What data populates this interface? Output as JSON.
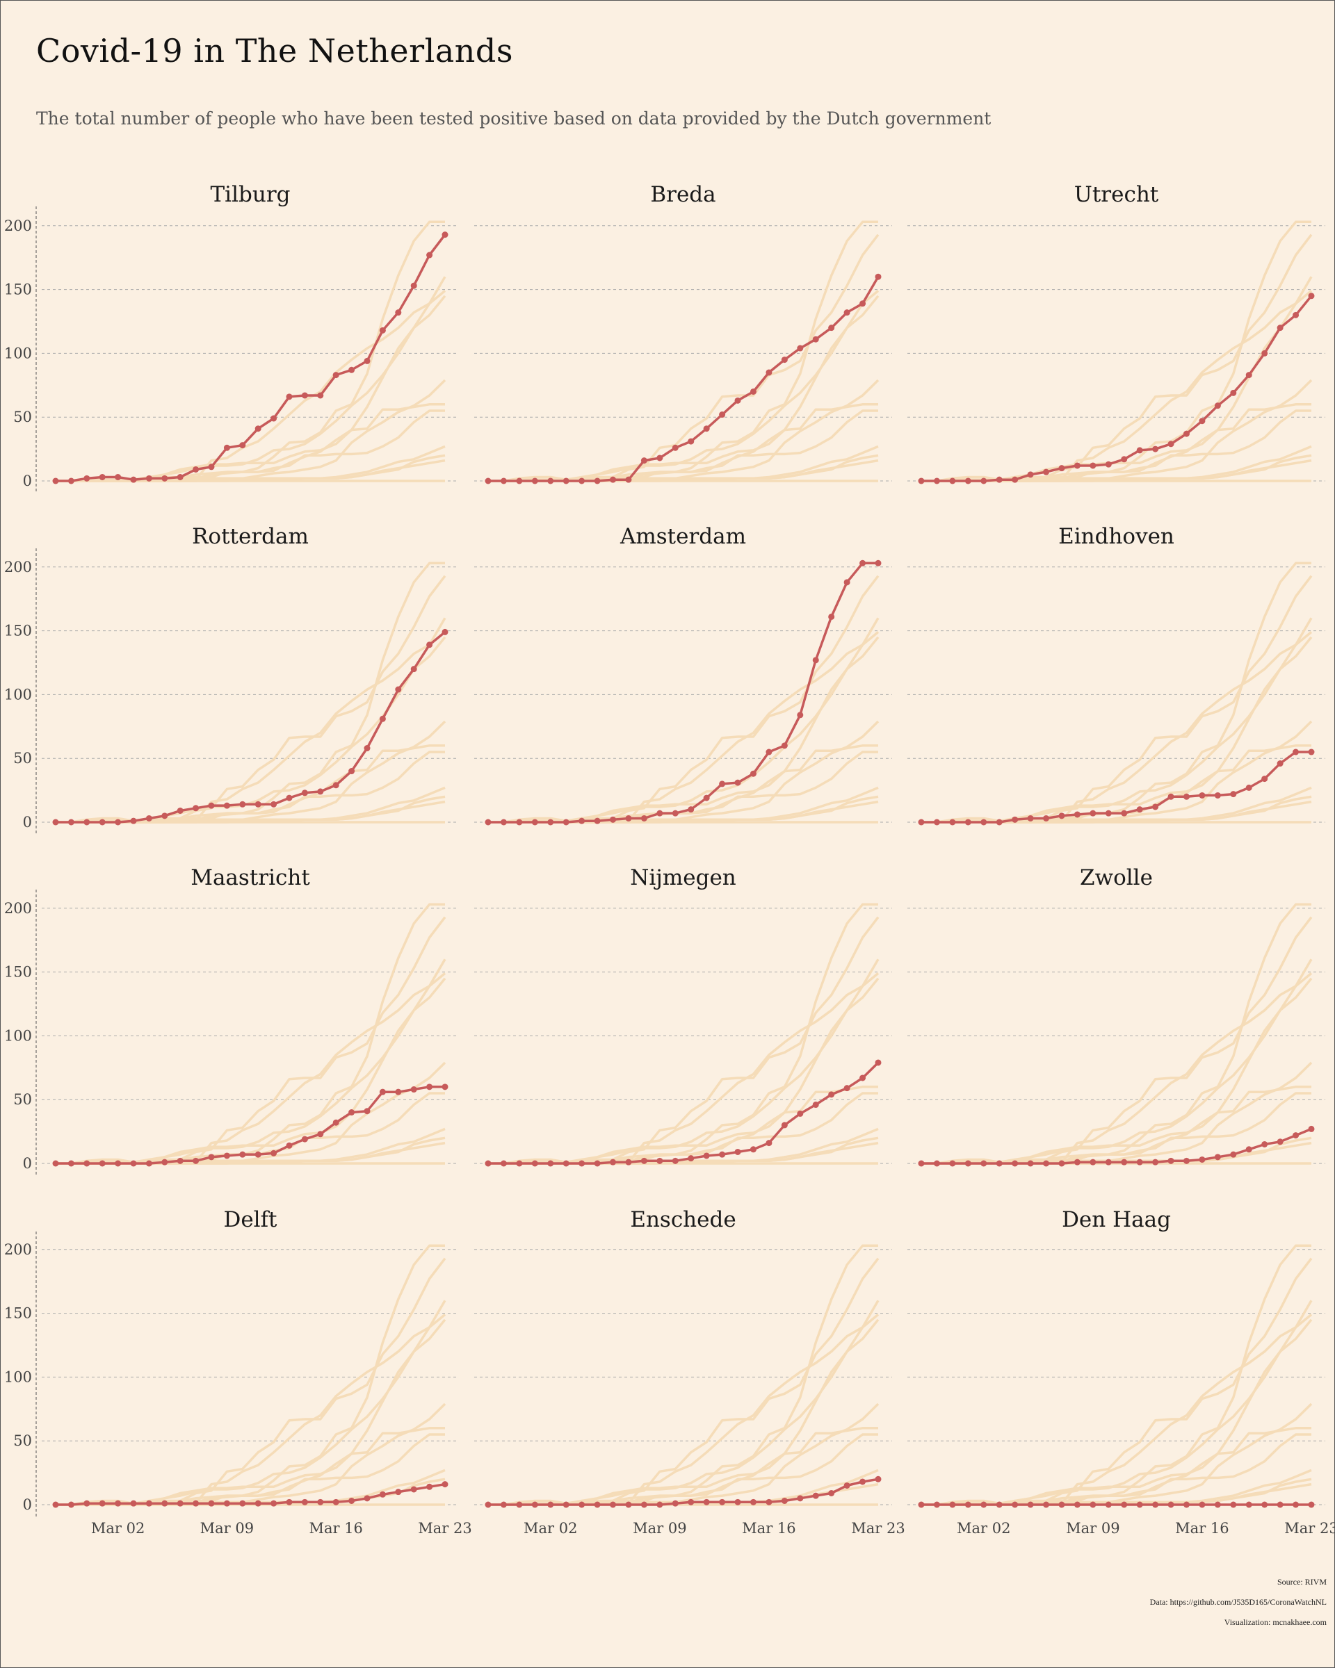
{
  "title": "Covid-19 in The Netherlands",
  "subtitle": "The total number of people who have been tested positive based on data provided by the Dutch government",
  "footer": {
    "source": "Source: RIVM",
    "data": "Data: https://github.com/J535D165/CoronaWatchNL",
    "visualization": "Visualization: mcnakhaee.com"
  },
  "colors": {
    "background": "#fbf0e2",
    "highlight": "#c75a5a",
    "context": "#f5dcb8",
    "grid": "#aaaaaa"
  },
  "chart_data": {
    "type": "line",
    "layout": "small multiples 4 rows x 3 columns; each panel highlights one city over faded lines of all cities",
    "x_dates": [
      "Feb 27",
      "Feb 28",
      "Feb 29",
      "Mar 01",
      "Mar 02",
      "Mar 03",
      "Mar 04",
      "Mar 05",
      "Mar 06",
      "Mar 07",
      "Mar 08",
      "Mar 09",
      "Mar 10",
      "Mar 11",
      "Mar 12",
      "Mar 13",
      "Mar 14",
      "Mar 15",
      "Mar 16",
      "Mar 17",
      "Mar 18",
      "Mar 19",
      "Mar 20",
      "Mar 21",
      "Mar 22",
      "Mar 23"
    ],
    "x_ticks": [
      "Mar 02",
      "Mar 09",
      "Mar 16",
      "Mar 23"
    ],
    "y_ticks": [
      "0",
      "50",
      "100",
      "150",
      "200"
    ],
    "ylim": [
      0,
      205
    ],
    "grid": "horizontal dashed",
    "series": [
      {
        "name": "Tilburg",
        "values": [
          0,
          0,
          2,
          3,
          3,
          1,
          2,
          2,
          3,
          9,
          11,
          26,
          28,
          41,
          49,
          66,
          67,
          67,
          83,
          87,
          94,
          118,
          132,
          153,
          177,
          193
        ]
      },
      {
        "name": "Breda",
        "values": [
          0,
          0,
          0,
          0,
          0,
          0,
          0,
          0,
          1,
          1,
          16,
          18,
          26,
          31,
          41,
          52,
          63,
          70,
          85,
          95,
          104,
          111,
          120,
          132,
          139,
          160
        ]
      },
      {
        "name": "Utrecht",
        "values": [
          0,
          0,
          0,
          0,
          0,
          1,
          1,
          5,
          7,
          10,
          12,
          12,
          13,
          17,
          24,
          25,
          29,
          37,
          47,
          59,
          69,
          83,
          100,
          120,
          130,
          145
        ]
      },
      {
        "name": "Rotterdam",
        "values": [
          0,
          0,
          0,
          0,
          0,
          1,
          3,
          5,
          9,
          11,
          13,
          13,
          14,
          14,
          14,
          19,
          23,
          24,
          29,
          40,
          58,
          81,
          104,
          120,
          139,
          149
        ]
      },
      {
        "name": "Amsterdam",
        "values": [
          0,
          0,
          0,
          0,
          0,
          0,
          1,
          1,
          2,
          3,
          3,
          7,
          7,
          10,
          19,
          30,
          31,
          38,
          55,
          60,
          84,
          127,
          161,
          188,
          203,
          203
        ]
      },
      {
        "name": "Eindhoven",
        "values": [
          0,
          0,
          0,
          0,
          0,
          0,
          2,
          3,
          3,
          5,
          6,
          7,
          7,
          7,
          10,
          12,
          20,
          20,
          21,
          21,
          22,
          27,
          34,
          46,
          55,
          55
        ]
      },
      {
        "name": "Maastricht",
        "values": [
          0,
          0,
          0,
          0,
          0,
          0,
          0,
          1,
          2,
          2,
          5,
          6,
          7,
          7,
          8,
          14,
          19,
          23,
          32,
          40,
          41,
          56,
          56,
          58,
          60,
          60
        ]
      },
      {
        "name": "Nijmegen",
        "values": [
          0,
          0,
          0,
          0,
          0,
          0,
          0,
          0,
          1,
          1,
          2,
          2,
          2,
          4,
          6,
          7,
          9,
          11,
          16,
          30,
          39,
          46,
          54,
          59,
          67,
          79
        ]
      },
      {
        "name": "Zwolle",
        "values": [
          0,
          0,
          0,
          0,
          0,
          0,
          0,
          0,
          0,
          0,
          1,
          1,
          1,
          1,
          1,
          1,
          2,
          2,
          3,
          5,
          7,
          11,
          15,
          17,
          22,
          27
        ]
      },
      {
        "name": "Delft",
        "values": [
          0,
          0,
          1,
          1,
          1,
          1,
          1,
          1,
          1,
          1,
          1,
          1,
          1,
          1,
          1,
          2,
          2,
          2,
          2,
          3,
          5,
          8,
          10,
          12,
          14,
          16
        ]
      },
      {
        "name": "Enschede",
        "values": [
          0,
          0,
          0,
          0,
          0,
          0,
          0,
          0,
          0,
          0,
          0,
          0,
          1,
          2,
          2,
          2,
          2,
          2,
          2,
          3,
          5,
          7,
          9,
          15,
          18,
          20
        ]
      },
      {
        "name": "Den Haag",
        "values": [
          0,
          0,
          0,
          0,
          0,
          0,
          0,
          0,
          0,
          0,
          0,
          0,
          0,
          0,
          0,
          0,
          0,
          0,
          0,
          0,
          0,
          0,
          0,
          0,
          0,
          0
        ]
      }
    ]
  }
}
